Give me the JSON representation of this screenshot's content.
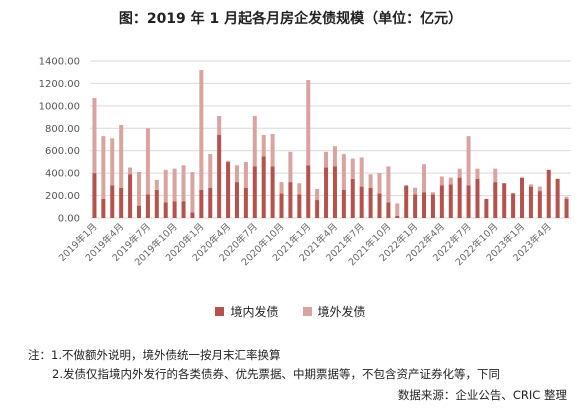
{
  "chart_data": {
    "type": "bar",
    "stacked": true,
    "title": "图：2019 年 1 月起各月房企发债规模（单位：亿元）",
    "ylim": [
      0,
      1400
    ],
    "yticks": [
      "0.00",
      "200.00",
      "400.00",
      "600.00",
      "800.00",
      "1000.00",
      "1200.00",
      "1400.00"
    ],
    "grid": true,
    "legend_position": "bottom",
    "categories": [
      "2019年1月",
      "2019年2月",
      "2019年3月",
      "2019年4月",
      "2019年5月",
      "2019年6月",
      "2019年7月",
      "2019年8月",
      "2019年9月",
      "2019年10月",
      "2019年11月",
      "2019年12月",
      "2020年1月",
      "2020年2月",
      "2020年3月",
      "2020年4月",
      "2020年5月",
      "2020年6月",
      "2020年7月",
      "2020年8月",
      "2020年9月",
      "2020年10月",
      "2020年11月",
      "2020年12月",
      "2021年1月",
      "2021年2月",
      "2021年3月",
      "2021年4月",
      "2021年5月",
      "2021年6月",
      "2021年7月",
      "2021年8月",
      "2021年9月",
      "2021年10月",
      "2021年11月",
      "2021年12月",
      "2022年1月",
      "2022年2月",
      "2022年3月",
      "2022年4月",
      "2022年5月",
      "2022年6月",
      "2022年7月",
      "2022年8月",
      "2022年9月",
      "2022年10月",
      "2022年11月",
      "2022年12月",
      "2023年1月",
      "2023年2月",
      "2023年3月",
      "2023年4月",
      "2023年5月",
      "2023年6月"
    ],
    "x_tick_labels": [
      "2019年1月",
      "2019年4月",
      "2019年7月",
      "2019年10月",
      "2020年1月",
      "2020年4月",
      "2020年7月",
      "2020年10月",
      "2021年1月",
      "2021年4月",
      "2021年7月",
      "2021年10月",
      "2022年1月",
      "2022年4月",
      "2022年7月",
      "2022年10月",
      "2023年1月",
      "2023年4月"
    ],
    "series": [
      {
        "name": "境内发债",
        "color": "#b5524d",
        "values": [
          400,
          170,
          290,
          270,
          390,
          110,
          210,
          250,
          140,
          150,
          150,
          50,
          250,
          270,
          740,
          500,
          320,
          270,
          460,
          550,
          460,
          220,
          320,
          210,
          470,
          160,
          450,
          460,
          250,
          350,
          280,
          270,
          220,
          140,
          20,
          290,
          210,
          230,
          210,
          290,
          300,
          360,
          290,
          350,
          170,
          320,
          310,
          220,
          360,
          280,
          240,
          430,
          350,
          170
        ]
      },
      {
        "name": "境外发债",
        "color": "#d9a3a0",
        "values": [
          670,
          560,
          420,
          560,
          60,
          300,
          590,
          90,
          290,
          290,
          320,
          360,
          1070,
          300,
          170,
          10,
          150,
          230,
          450,
          190,
          290,
          100,
          270,
          100,
          760,
          100,
          140,
          180,
          320,
          180,
          260,
          120,
          180,
          320,
          110,
          0,
          60,
          250,
          20,
          80,
          60,
          80,
          440,
          90,
          0,
          120,
          0,
          0,
          0,
          20,
          40,
          0,
          0,
          20
        ]
      }
    ]
  },
  "notes": {
    "line1": "注：1.不做额外说明，境外债统一按月末汇率换算",
    "line2": "2.发债仅指境内外发行的各类债券、优先票据、中期票据等，不包含资产证券化等，下同",
    "source": "数据来源：企业公告、CRIC 整理"
  }
}
